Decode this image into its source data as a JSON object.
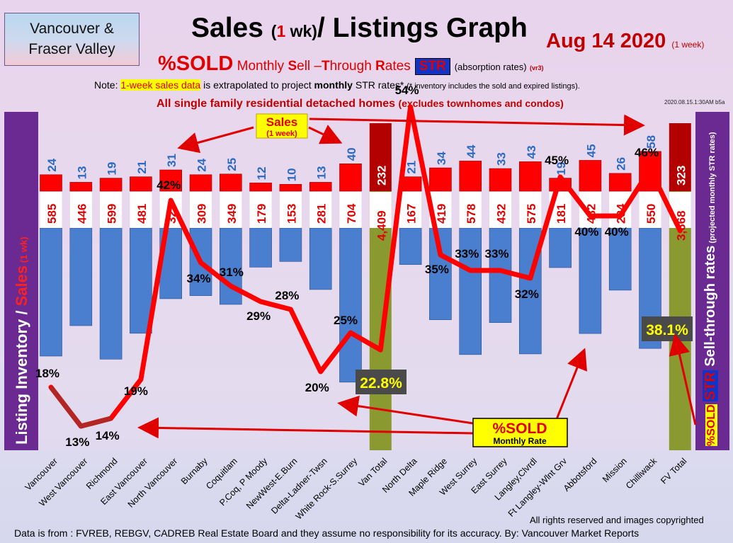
{
  "region": {
    "line1": "Vancouver &",
    "line2": "Fraser Valley"
  },
  "title": {
    "part1": "Sales ",
    "paren_open": "(",
    "one": "1",
    "wk": " wk)",
    "part2": "/ Listings Graph"
  },
  "date": {
    "main": "Aug 14  2020",
    "note": "(1 week)"
  },
  "subtitle": {
    "sold": "%SOLD",
    "s1": " Monthly ",
    "S": "S",
    "s2": "ell –",
    "T": "T",
    "s3": "hrough ",
    "R": "R",
    "s4": "ates",
    "str": "STR",
    "absorption": "(absorption rates)",
    "vr": "(vr3)"
  },
  "note": {
    "pre": "Note: ",
    "hl": "1-week sales data",
    "mid": " is extrapolated to project ",
    "bold": "monthly",
    "post": " STR rates* ",
    "small": "(* inventory includes the sold and expired listings)."
  },
  "note2": {
    "main": "All single family residential detached homes ",
    "small": "(excludes townhomes and condos)"
  },
  "stamp": "2020.08.15.1:30AM b5a",
  "left_label": {
    "a": "Listing Inventory ",
    "slash": "/ ",
    "sales": "Sales",
    "wk": " (1 wk)"
  },
  "right_label": {
    "sold": "%SOLD",
    "str": "STR",
    "main": " Sell-through rates",
    "small": " (projected monthly STR rates)"
  },
  "callouts": {
    "sales": "Sales",
    "sales_sub": "(1 week)",
    "sold": "%SOLD",
    "sold_sub": "Monthly Rate"
  },
  "footer": {
    "rights": "All rights reserved and  images copyrighted",
    "source": "Data is from : FVREB, REBGV, CADREB Real Estate Board and they assume no responsibility for its accuracy. By: Vancouver Market Reports"
  },
  "colors": {
    "sales_bar": "#ff0000",
    "inventory_bar": "#4a7fd0",
    "total_bar": "#8a9a30",
    "total_sales": "#b30000",
    "str_line": "#ff0000",
    "accent_purple": "#6b2a91"
  },
  "chart_data": {
    "type": "bar",
    "categories": [
      "Vancouver",
      "West Vancouver",
      "Richmond",
      "East Vancouver",
      "North Vancouver",
      "Burnaby",
      "Coquitlam",
      "P.Coq, P Moody",
      "NewWest-E.Burn",
      "Delta-Ladner-Twsn",
      "White Rock-S.Surrey",
      "Van Total",
      "North Delta",
      "Maple Ridge",
      "West Surrey",
      "East Surrey",
      "Langley,Clvrdl",
      "Ft Langley-Wlnt Grv",
      "Abbotsford",
      "Mission",
      "Chilliwack",
      "FV Total"
    ],
    "series": [
      {
        "name": "Sales",
        "values": [
          24,
          13,
          19,
          21,
          31,
          24,
          25,
          12,
          10,
          13,
          40,
          232,
          21,
          34,
          44,
          33,
          43,
          19,
          45,
          26,
          58,
          323
        ]
      },
      {
        "name": "Listing Inventory",
        "values": [
          585,
          446,
          599,
          481,
          323,
          309,
          349,
          179,
          153,
          281,
          704,
          4409,
          167,
          419,
          578,
          432,
          575,
          181,
          482,
          284,
          550,
          3668
        ]
      },
      {
        "name": "%SOLD",
        "values": [
          18,
          13,
          14,
          19,
          42,
          34,
          31,
          29,
          28,
          20,
          25,
          22.8,
          54,
          35,
          33,
          33,
          32,
          45,
          40,
          40,
          46,
          38.1
        ]
      }
    ],
    "sales_labels": [
      "24",
      "13",
      "19",
      "21",
      "31",
      "24",
      "25",
      "12",
      "10",
      "13",
      "40",
      "232",
      "21",
      "34",
      "44",
      "33",
      "43",
      "19",
      "45",
      "26",
      "58",
      "323"
    ],
    "inventory_labels": [
      "585",
      "446",
      "599",
      "481",
      "323",
      "309",
      "349",
      "179",
      "153",
      "281",
      "704",
      "4,409",
      "167",
      "419",
      "578",
      "432",
      "575",
      "181",
      "482",
      "284",
      "550",
      "3,668"
    ],
    "pct_labels": [
      "18%",
      "13%",
      "14%",
      "19%",
      "42%",
      "34%",
      "31%",
      "29%",
      "28%",
      "20%",
      "25%",
      "22.8%",
      "54%",
      "35%",
      "33%",
      "33%",
      "32%",
      "45%",
      "40%",
      "40%",
      "46%",
      "38.1%"
    ],
    "totals_index": [
      11,
      21
    ],
    "grid": false
  }
}
